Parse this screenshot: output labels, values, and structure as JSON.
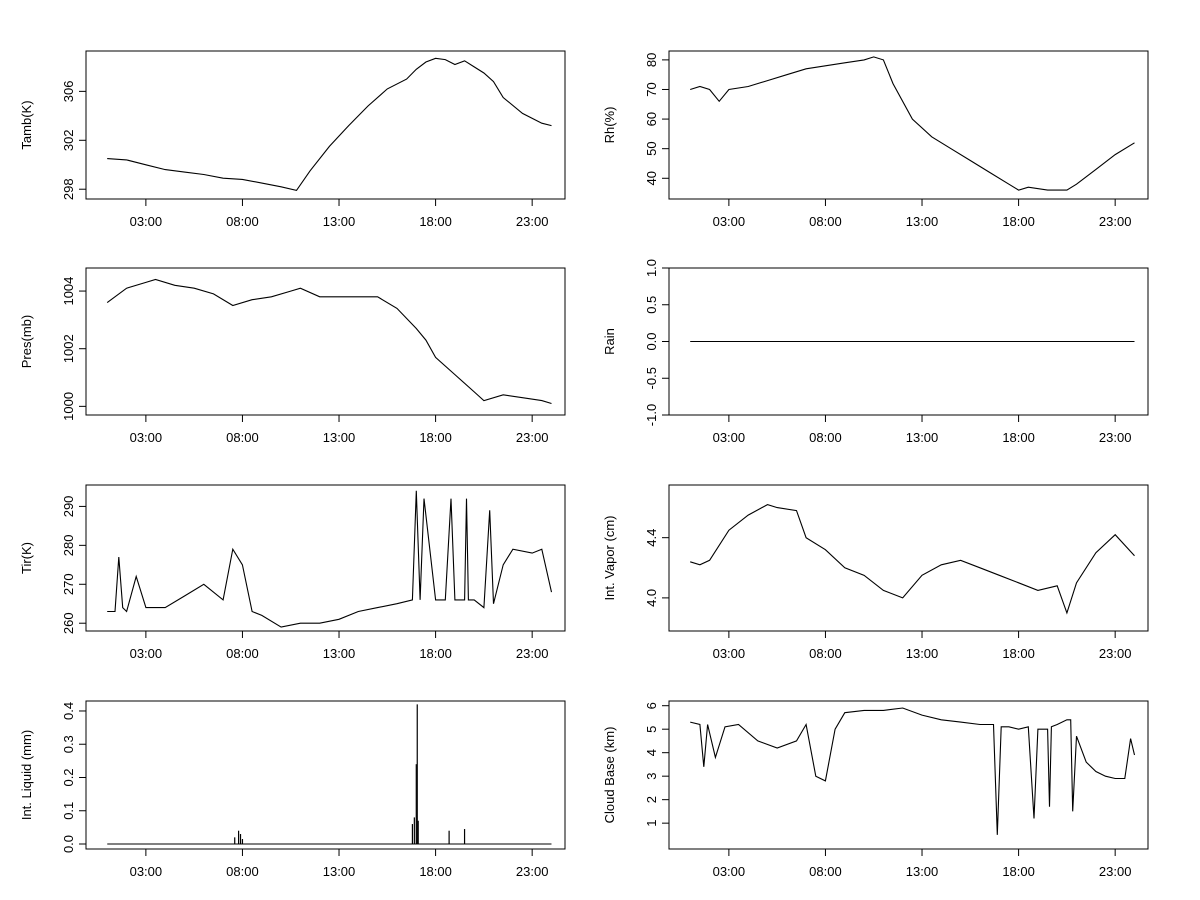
{
  "chart_data": [
    {
      "type": "line",
      "ylabel": "Tamb(K)",
      "xlabel": "",
      "x_ticks": [
        "03:00",
        "08:00",
        "13:00",
        "18:00",
        "23:00"
      ],
      "y_ticks": [
        "298",
        "302",
        "306"
      ],
      "ylim": [
        297.2,
        309.3
      ],
      "xlim": [
        -0.1,
        24.7
      ],
      "x_values_hours": [
        1.0,
        2.0,
        3.0,
        4.0,
        5.0,
        6.0,
        7.0,
        8.0,
        9.0,
        10.0,
        10.8,
        11.5,
        12.5,
        13.5,
        14.5,
        15.5,
        16.5,
        17.0,
        17.5,
        18.0,
        18.5,
        19.0,
        19.5,
        20.0,
        20.5,
        21.0,
        21.5,
        22.5,
        23.5,
        24.0
      ],
      "values": [
        300.5,
        300.4,
        300.0,
        299.6,
        299.4,
        299.2,
        298.9,
        298.8,
        298.5,
        298.2,
        297.9,
        299.5,
        301.5,
        303.2,
        304.8,
        306.2,
        307.0,
        307.8,
        308.4,
        308.7,
        308.6,
        308.2,
        308.5,
        308.0,
        307.5,
        306.8,
        305.5,
        304.2,
        303.4,
        303.2
      ]
    },
    {
      "type": "line",
      "ylabel": "Rh(%)",
      "xlabel": "",
      "x_ticks": [
        "03:00",
        "08:00",
        "13:00",
        "18:00",
        "23:00"
      ],
      "y_ticks": [
        "40",
        "50",
        "60",
        "70",
        "80"
      ],
      "ylim": [
        33,
        83
      ],
      "xlim": [
        -0.1,
        24.7
      ],
      "x_values_hours": [
        1.0,
        1.5,
        2.0,
        2.5,
        3.0,
        4.0,
        5.0,
        6.0,
        7.0,
        8.0,
        9.0,
        10.0,
        10.5,
        11.0,
        11.5,
        12.5,
        13.5,
        14.5,
        15.5,
        16.5,
        17.5,
        18.0,
        18.5,
        19.5,
        20.5,
        21.0,
        22.0,
        23.0,
        24.0
      ],
      "values": [
        70,
        71,
        70,
        66,
        70,
        71,
        73,
        75,
        77,
        78,
        79,
        80,
        81,
        80,
        72,
        60,
        54,
        50,
        46,
        42,
        38,
        36,
        37,
        36,
        36,
        38,
        43,
        48,
        52
      ]
    },
    {
      "type": "line",
      "ylabel": "Pres(mb)",
      "xlabel": "",
      "x_ticks": [
        "03:00",
        "08:00",
        "13:00",
        "18:00",
        "23:00"
      ],
      "y_ticks": [
        "1000",
        "1002",
        "1004"
      ],
      "ylim": [
        999.7,
        1004.8
      ],
      "xlim": [
        -0.1,
        24.7
      ],
      "x_values_hours": [
        1.0,
        2.0,
        3.0,
        3.5,
        4.5,
        5.5,
        6.5,
        7.5,
        8.5,
        9.5,
        10.5,
        11.0,
        12.0,
        13.0,
        14.0,
        15.0,
        16.0,
        17.0,
        17.5,
        18.0,
        19.0,
        20.0,
        20.5,
        21.5,
        22.5,
        23.5,
        24.0
      ],
      "values": [
        1003.6,
        1004.1,
        1004.3,
        1004.4,
        1004.2,
        1004.1,
        1003.9,
        1003.5,
        1003.7,
        1003.8,
        1004.0,
        1004.1,
        1003.8,
        1003.8,
        1003.8,
        1003.8,
        1003.4,
        1002.7,
        1002.3,
        1001.7,
        1001.1,
        1000.5,
        1000.2,
        1000.4,
        1000.3,
        1000.2,
        1000.1
      ]
    },
    {
      "type": "line",
      "ylabel": "Rain",
      "xlabel": "",
      "x_ticks": [
        "03:00",
        "08:00",
        "13:00",
        "18:00",
        "23:00"
      ],
      "y_ticks": [
        "-1.0",
        "-0.5",
        "0.0",
        "0.5",
        "1.0"
      ],
      "ylim": [
        -1.0,
        1.0
      ],
      "xlim": [
        -0.1,
        24.7
      ],
      "x_values_hours": [
        1.0,
        24.0
      ],
      "values": [
        0.0,
        0.0
      ]
    },
    {
      "type": "line",
      "ylabel": "Tir(K)",
      "xlabel": "",
      "x_ticks": [
        "03:00",
        "08:00",
        "13:00",
        "18:00",
        "23:00"
      ],
      "y_ticks": [
        "260",
        "270",
        "280",
        "290"
      ],
      "ylim": [
        258,
        295.5
      ],
      "xlim": [
        -0.1,
        24.7
      ],
      "x_values_hours": [
        1.0,
        1.4,
        1.6,
        1.8,
        2.0,
        2.5,
        3.0,
        4.0,
        5.0,
        6.0,
        7.0,
        7.5,
        8.0,
        8.5,
        9.0,
        10.0,
        11.0,
        12.0,
        13.0,
        14.0,
        15.0,
        16.0,
        16.8,
        17.0,
        17.2,
        17.4,
        18.0,
        18.5,
        18.8,
        19.0,
        19.5,
        19.6,
        19.7,
        20.0,
        20.5,
        20.8,
        21.0,
        21.5,
        22.0,
        23.0,
        23.5,
        24.0
      ],
      "values": [
        263,
        263,
        277,
        264,
        263,
        272,
        264,
        264,
        267,
        270,
        266,
        279,
        275,
        263,
        262,
        259,
        260,
        260,
        261,
        263,
        264,
        265,
        266,
        294,
        266,
        292,
        266,
        266,
        292,
        266,
        266,
        292,
        266,
        266,
        264,
        289,
        265,
        275,
        279,
        278,
        279,
        268
      ]
    },
    {
      "type": "line",
      "ylabel": "Int. Vapor (cm)",
      "xlabel": "",
      "x_ticks": [
        "03:00",
        "08:00",
        "13:00",
        "18:00",
        "23:00"
      ],
      "y_ticks": [
        "4.0",
        "4.4"
      ],
      "ylim": [
        3.78,
        4.75
      ],
      "xlim": [
        -0.1,
        24.7
      ],
      "x_values_hours": [
        1.0,
        1.5,
        2.0,
        3.0,
        4.0,
        5.0,
        5.5,
        6.5,
        7.0,
        8.0,
        9.0,
        10.0,
        11.0,
        12.0,
        13.0,
        14.0,
        15.0,
        16.0,
        17.0,
        18.0,
        19.0,
        20.0,
        20.5,
        21.0,
        22.0,
        23.0,
        24.0
      ],
      "values": [
        4.24,
        4.22,
        4.25,
        4.45,
        4.55,
        4.62,
        4.6,
        4.58,
        4.4,
        4.32,
        4.2,
        4.15,
        4.05,
        4.0,
        4.15,
        4.22,
        4.25,
        4.2,
        4.15,
        4.1,
        4.05,
        4.08,
        3.9,
        4.1,
        4.3,
        4.42,
        4.28
      ]
    },
    {
      "type": "bar",
      "ylabel": "Int. Liquid (mm)",
      "xlabel": "",
      "x_ticks": [
        "03:00",
        "08:00",
        "13:00",
        "18:00",
        "23:00"
      ],
      "y_ticks": [
        "0.0",
        "0.1",
        "0.2",
        "0.3",
        "0.4"
      ],
      "ylim": [
        -0.015,
        0.43
      ],
      "xlim": [
        -0.1,
        24.7
      ],
      "baseline": {
        "x_values_hours": [
          1.0,
          24.0
        ],
        "values": [
          0.0,
          0.0
        ]
      },
      "x_values_hours": [
        7.6,
        7.8,
        7.9,
        8.0,
        16.8,
        16.9,
        17.0,
        17.05,
        17.1,
        18.7,
        19.5
      ],
      "values": [
        0.02,
        0.04,
        0.03,
        0.015,
        0.06,
        0.08,
        0.24,
        0.42,
        0.07,
        0.04,
        0.045
      ]
    },
    {
      "type": "line",
      "ylabel": "Cloud Base (km)",
      "xlabel": "",
      "x_ticks": [
        "03:00",
        "08:00",
        "13:00",
        "18:00",
        "23:00"
      ],
      "y_ticks": [
        "1",
        "2",
        "3",
        "4",
        "5",
        "6"
      ],
      "ylim": [
        -0.1,
        6.2
      ],
      "xlim": [
        -0.1,
        24.7
      ],
      "x_values_hours": [
        1.0,
        1.5,
        1.7,
        1.9,
        2.3,
        2.8,
        3.5,
        4.5,
        5.5,
        6.5,
        7.0,
        7.5,
        8.0,
        8.5,
        9.0,
        10.0,
        11.0,
        12.0,
        13.0,
        14.0,
        15.0,
        16.0,
        16.7,
        16.9,
        17.1,
        17.5,
        18.0,
        18.5,
        18.8,
        19.0,
        19.5,
        19.6,
        19.7,
        20.0,
        20.5,
        20.7,
        20.8,
        21.0,
        21.5,
        22.0,
        22.5,
        23.0,
        23.5,
        23.8,
        24.0
      ],
      "values": [
        5.3,
        5.2,
        3.4,
        5.2,
        3.8,
        5.1,
        5.2,
        4.5,
        4.2,
        4.5,
        5.2,
        3.0,
        2.8,
        5.0,
        5.7,
        5.8,
        5.8,
        5.9,
        5.6,
        5.4,
        5.3,
        5.2,
        5.2,
        0.5,
        5.1,
        5.1,
        5.0,
        5.1,
        1.2,
        5.0,
        5.0,
        1.7,
        5.1,
        5.2,
        5.4,
        5.4,
        1.5,
        4.7,
        3.6,
        3.2,
        3.0,
        2.9,
        2.9,
        4.6,
        3.9
      ]
    }
  ]
}
